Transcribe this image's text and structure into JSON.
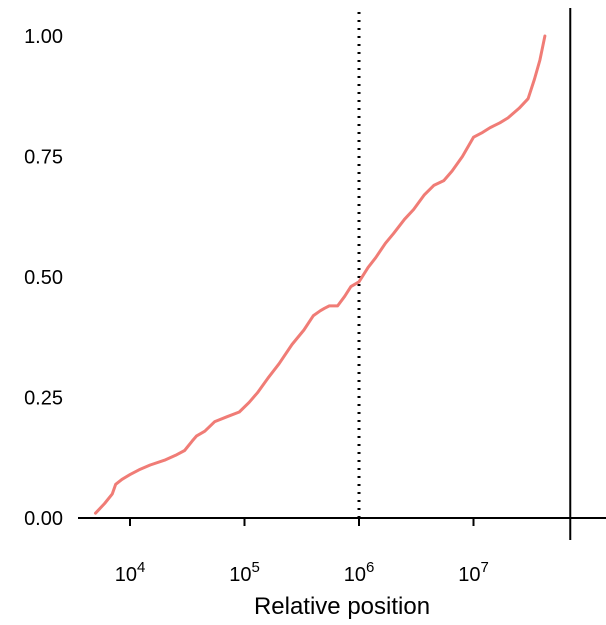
{
  "chart_data": {
    "type": "line",
    "title": "",
    "xlabel": "Relative position",
    "ylabel": "",
    "x_scale": "log10",
    "xlim": [
      3000,
      100000000
    ],
    "ylim": [
      0,
      1
    ],
    "x_ticks": [
      {
        "value": 10000,
        "base": "10",
        "exp": "4"
      },
      {
        "value": 100000,
        "base": "10",
        "exp": "5"
      },
      {
        "value": 1000000,
        "base": "10",
        "exp": "6"
      },
      {
        "value": 10000000,
        "base": "10",
        "exp": "7"
      }
    ],
    "y_ticks": [
      {
        "value": 0,
        "label": "0.00"
      },
      {
        "value": 0.25,
        "label": "0.25"
      },
      {
        "value": 0.5,
        "label": "0.50"
      },
      {
        "value": 0.75,
        "label": "0.75"
      },
      {
        "value": 1,
        "label": "1.00"
      }
    ],
    "reference_lines": [
      {
        "axis": "x",
        "value": 1000000,
        "style": "dotted",
        "color": "#000000"
      },
      {
        "axis": "x",
        "value": 70000000,
        "style": "solid",
        "color": "#000000"
      }
    ],
    "grid": false,
    "series": [
      {
        "color": "#F07C76",
        "x": [
          5000,
          6000,
          7000,
          7500,
          8500,
          10000,
          12000,
          15000,
          20000,
          25000,
          30000,
          35000,
          38000,
          45000,
          55000,
          70000,
          90000,
          110000,
          130000,
          160000,
          200000,
          260000,
          330000,
          400000,
          460000,
          500000,
          550000,
          650000,
          750000,
          850000,
          1000000,
          1200000,
          1400000,
          1700000,
          2000000,
          2500000,
          3000000,
          3700000,
          4500000,
          5500000,
          6500000,
          8000000,
          10000000,
          12000000,
          14000000,
          17000000,
          20000000,
          25000000,
          30000000,
          34000000,
          38000000,
          42000000
        ],
        "y": [
          0.01,
          0.03,
          0.05,
          0.07,
          0.08,
          0.09,
          0.1,
          0.11,
          0.12,
          0.13,
          0.14,
          0.16,
          0.17,
          0.18,
          0.2,
          0.21,
          0.22,
          0.24,
          0.26,
          0.29,
          0.32,
          0.36,
          0.39,
          0.42,
          0.43,
          0.435,
          0.44,
          0.44,
          0.46,
          0.48,
          0.49,
          0.52,
          0.54,
          0.57,
          0.59,
          0.62,
          0.64,
          0.67,
          0.69,
          0.7,
          0.72,
          0.75,
          0.79,
          0.8,
          0.81,
          0.82,
          0.83,
          0.85,
          0.87,
          0.91,
          0.95,
          1.0
        ]
      }
    ]
  }
}
